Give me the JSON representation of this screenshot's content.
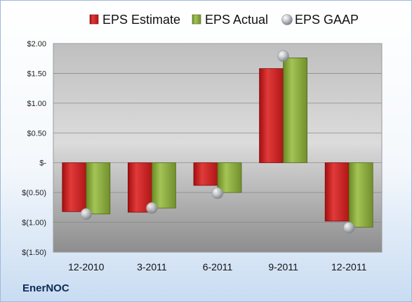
{
  "company": "EnerNOC",
  "chart_data": {
    "type": "bar",
    "categories": [
      "12-2010",
      "3-2011",
      "6-2011",
      "9-2011",
      "12-2011"
    ],
    "series": [
      {
        "name": "EPS Estimate",
        "kind": "bar",
        "color": "#cc1f1f",
        "values": [
          -0.82,
          -0.83,
          -0.38,
          1.58,
          -0.98
        ]
      },
      {
        "name": "EPS Actual",
        "kind": "bar",
        "color": "#86a83a",
        "values": [
          -0.86,
          -0.76,
          -0.5,
          1.76,
          -1.08
        ]
      },
      {
        "name": "EPS GAAP",
        "kind": "marker",
        "color": "#b8bcc2",
        "values": [
          -0.86,
          -0.76,
          -0.51,
          1.79,
          -1.09
        ]
      }
    ],
    "y_ticks": [
      2.0,
      1.5,
      1.0,
      0.5,
      0,
      -0.5,
      -1.0,
      -1.5
    ],
    "y_tick_labels": [
      "$2.00",
      "$1.50",
      "$1.00",
      "$0.50",
      "$-",
      "$(0.50)",
      "$(1.00)",
      "$(1.50)"
    ],
    "ylim": [
      -1.5,
      2.0
    ],
    "grid": true,
    "legend_position": "top"
  }
}
